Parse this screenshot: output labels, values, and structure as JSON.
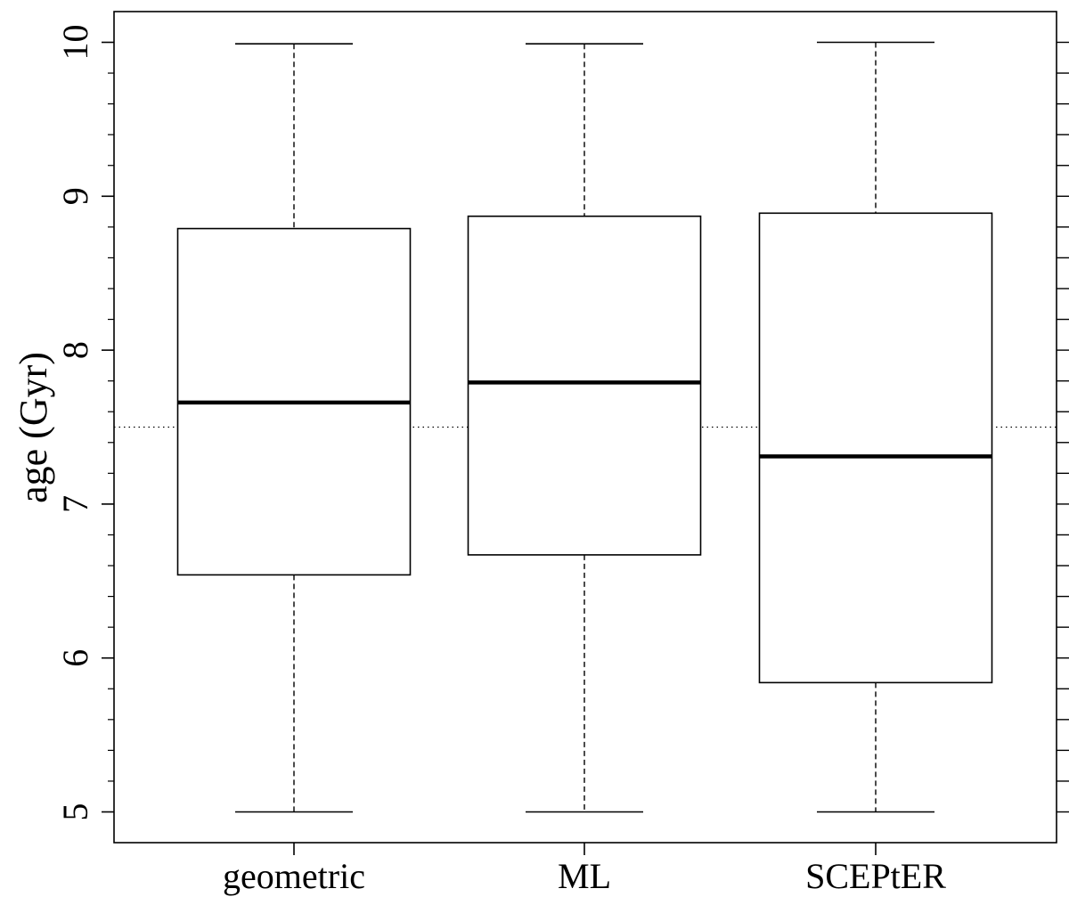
{
  "chart_data": {
    "type": "boxplot",
    "ylabel": "age (Gyr)",
    "ylim": [
      4.8,
      10.2
    ],
    "yticks": [
      5,
      6,
      7,
      8,
      9,
      10
    ],
    "reference_line": 7.5,
    "categories": [
      "geometric",
      "ML",
      "SCEPtER"
    ],
    "boxes": [
      {
        "category": "geometric",
        "min": 5.0,
        "q1": 6.54,
        "median": 7.66,
        "q3": 8.79,
        "max": 9.99
      },
      {
        "category": "ML",
        "min": 5.0,
        "q1": 6.67,
        "median": 7.79,
        "q3": 8.87,
        "max": 9.99
      },
      {
        "category": "SCEPtER",
        "min": 5.0,
        "q1": 5.84,
        "median": 7.31,
        "q3": 8.89,
        "max": 10.0
      }
    ]
  }
}
